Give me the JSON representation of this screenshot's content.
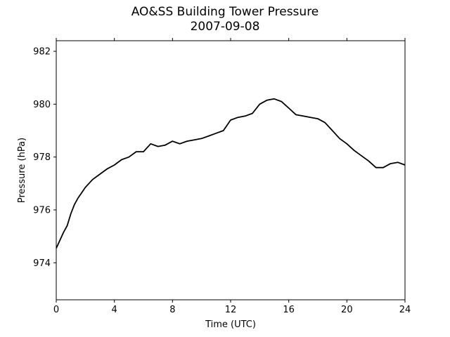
{
  "chart_data": {
    "type": "line",
    "title": "AO&SS Building Tower Pressure",
    "subtitle": "2007-09-08",
    "xlabel": "Time (UTC)",
    "ylabel": "Pressure (hPa)",
    "xlim": [
      0,
      24
    ],
    "ylim": [
      972.6,
      982.4
    ],
    "xticks": [
      0,
      4,
      8,
      12,
      16,
      20,
      24
    ],
    "yticks": [
      974,
      976,
      978,
      980,
      982
    ],
    "grid": false,
    "series": [
      {
        "color": "#000000",
        "x": [
          0,
          0.25,
          0.5,
          0.75,
          1,
          1.25,
          1.5,
          1.75,
          2,
          2.5,
          3,
          3.5,
          4,
          4.5,
          5,
          5.5,
          6,
          6.5,
          7,
          7.5,
          8,
          8.5,
          9,
          9.5,
          10,
          10.5,
          11,
          11.5,
          12,
          12.5,
          13,
          13.5,
          14,
          14.5,
          15,
          15.5,
          16,
          16.5,
          17,
          17.5,
          18,
          18.5,
          19,
          19.5,
          20,
          20.5,
          21,
          21.5,
          22,
          22.5,
          23,
          23.5,
          24
        ],
        "y": [
          974.55,
          974.85,
          975.15,
          975.4,
          975.85,
          976.2,
          976.45,
          976.65,
          976.85,
          977.15,
          977.35,
          977.55,
          977.7,
          977.9,
          978.0,
          978.2,
          978.2,
          978.5,
          978.4,
          978.45,
          978.6,
          978.5,
          978.6,
          978.65,
          978.7,
          978.8,
          978.9,
          979.0,
          979.4,
          979.5,
          979.55,
          979.65,
          980.0,
          980.15,
          980.2,
          980.1,
          979.85,
          979.6,
          979.55,
          979.5,
          979.45,
          979.3,
          979.0,
          978.7,
          978.5,
          978.25,
          978.05,
          977.85,
          977.6,
          977.6,
          977.75,
          977.8,
          977.7
        ]
      }
    ]
  }
}
